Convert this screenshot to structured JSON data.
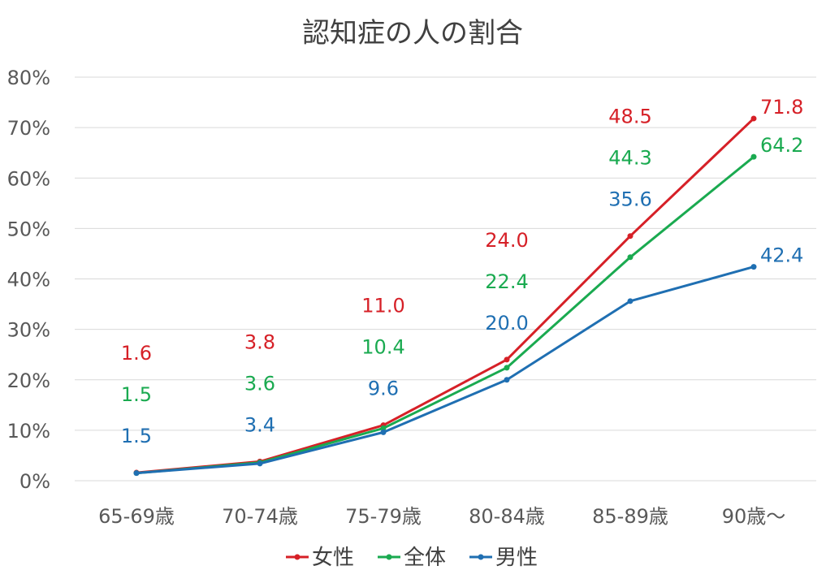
{
  "chart_data": {
    "type": "line",
    "title": "認知症の人の割合",
    "categories": [
      "65-69歳",
      "70-74歳",
      "75-79歳",
      "80-84歳",
      "85-89歳",
      "90歳〜"
    ],
    "y_ticks": [
      "0%",
      "10%",
      "20%",
      "30%",
      "40%",
      "50%",
      "60%",
      "70%",
      "80%"
    ],
    "ylim": [
      0,
      80
    ],
    "grid": true,
    "legend_position": "bottom",
    "series": [
      {
        "name": "女性",
        "color": "#d62027",
        "values": [
          1.6,
          3.8,
          11.0,
          24.0,
          48.5,
          71.8
        ],
        "labels": [
          "1.6",
          "3.8",
          "11.0",
          "24.0",
          "48.5",
          "71.8"
        ]
      },
      {
        "name": "全体",
        "color": "#1aaa50",
        "values": [
          1.5,
          3.6,
          10.4,
          22.4,
          44.3,
          64.2
        ],
        "labels": [
          "1.5",
          "3.6",
          "10.4",
          "22.4",
          "44.3",
          "64.2"
        ]
      },
      {
        "name": "男性",
        "color": "#1f6fb2",
        "values": [
          1.5,
          3.4,
          9.6,
          20.0,
          35.6,
          42.4
        ],
        "labels": [
          "1.5",
          "3.4",
          "9.6",
          "20.0",
          "35.6",
          "42.4"
        ]
      }
    ]
  }
}
